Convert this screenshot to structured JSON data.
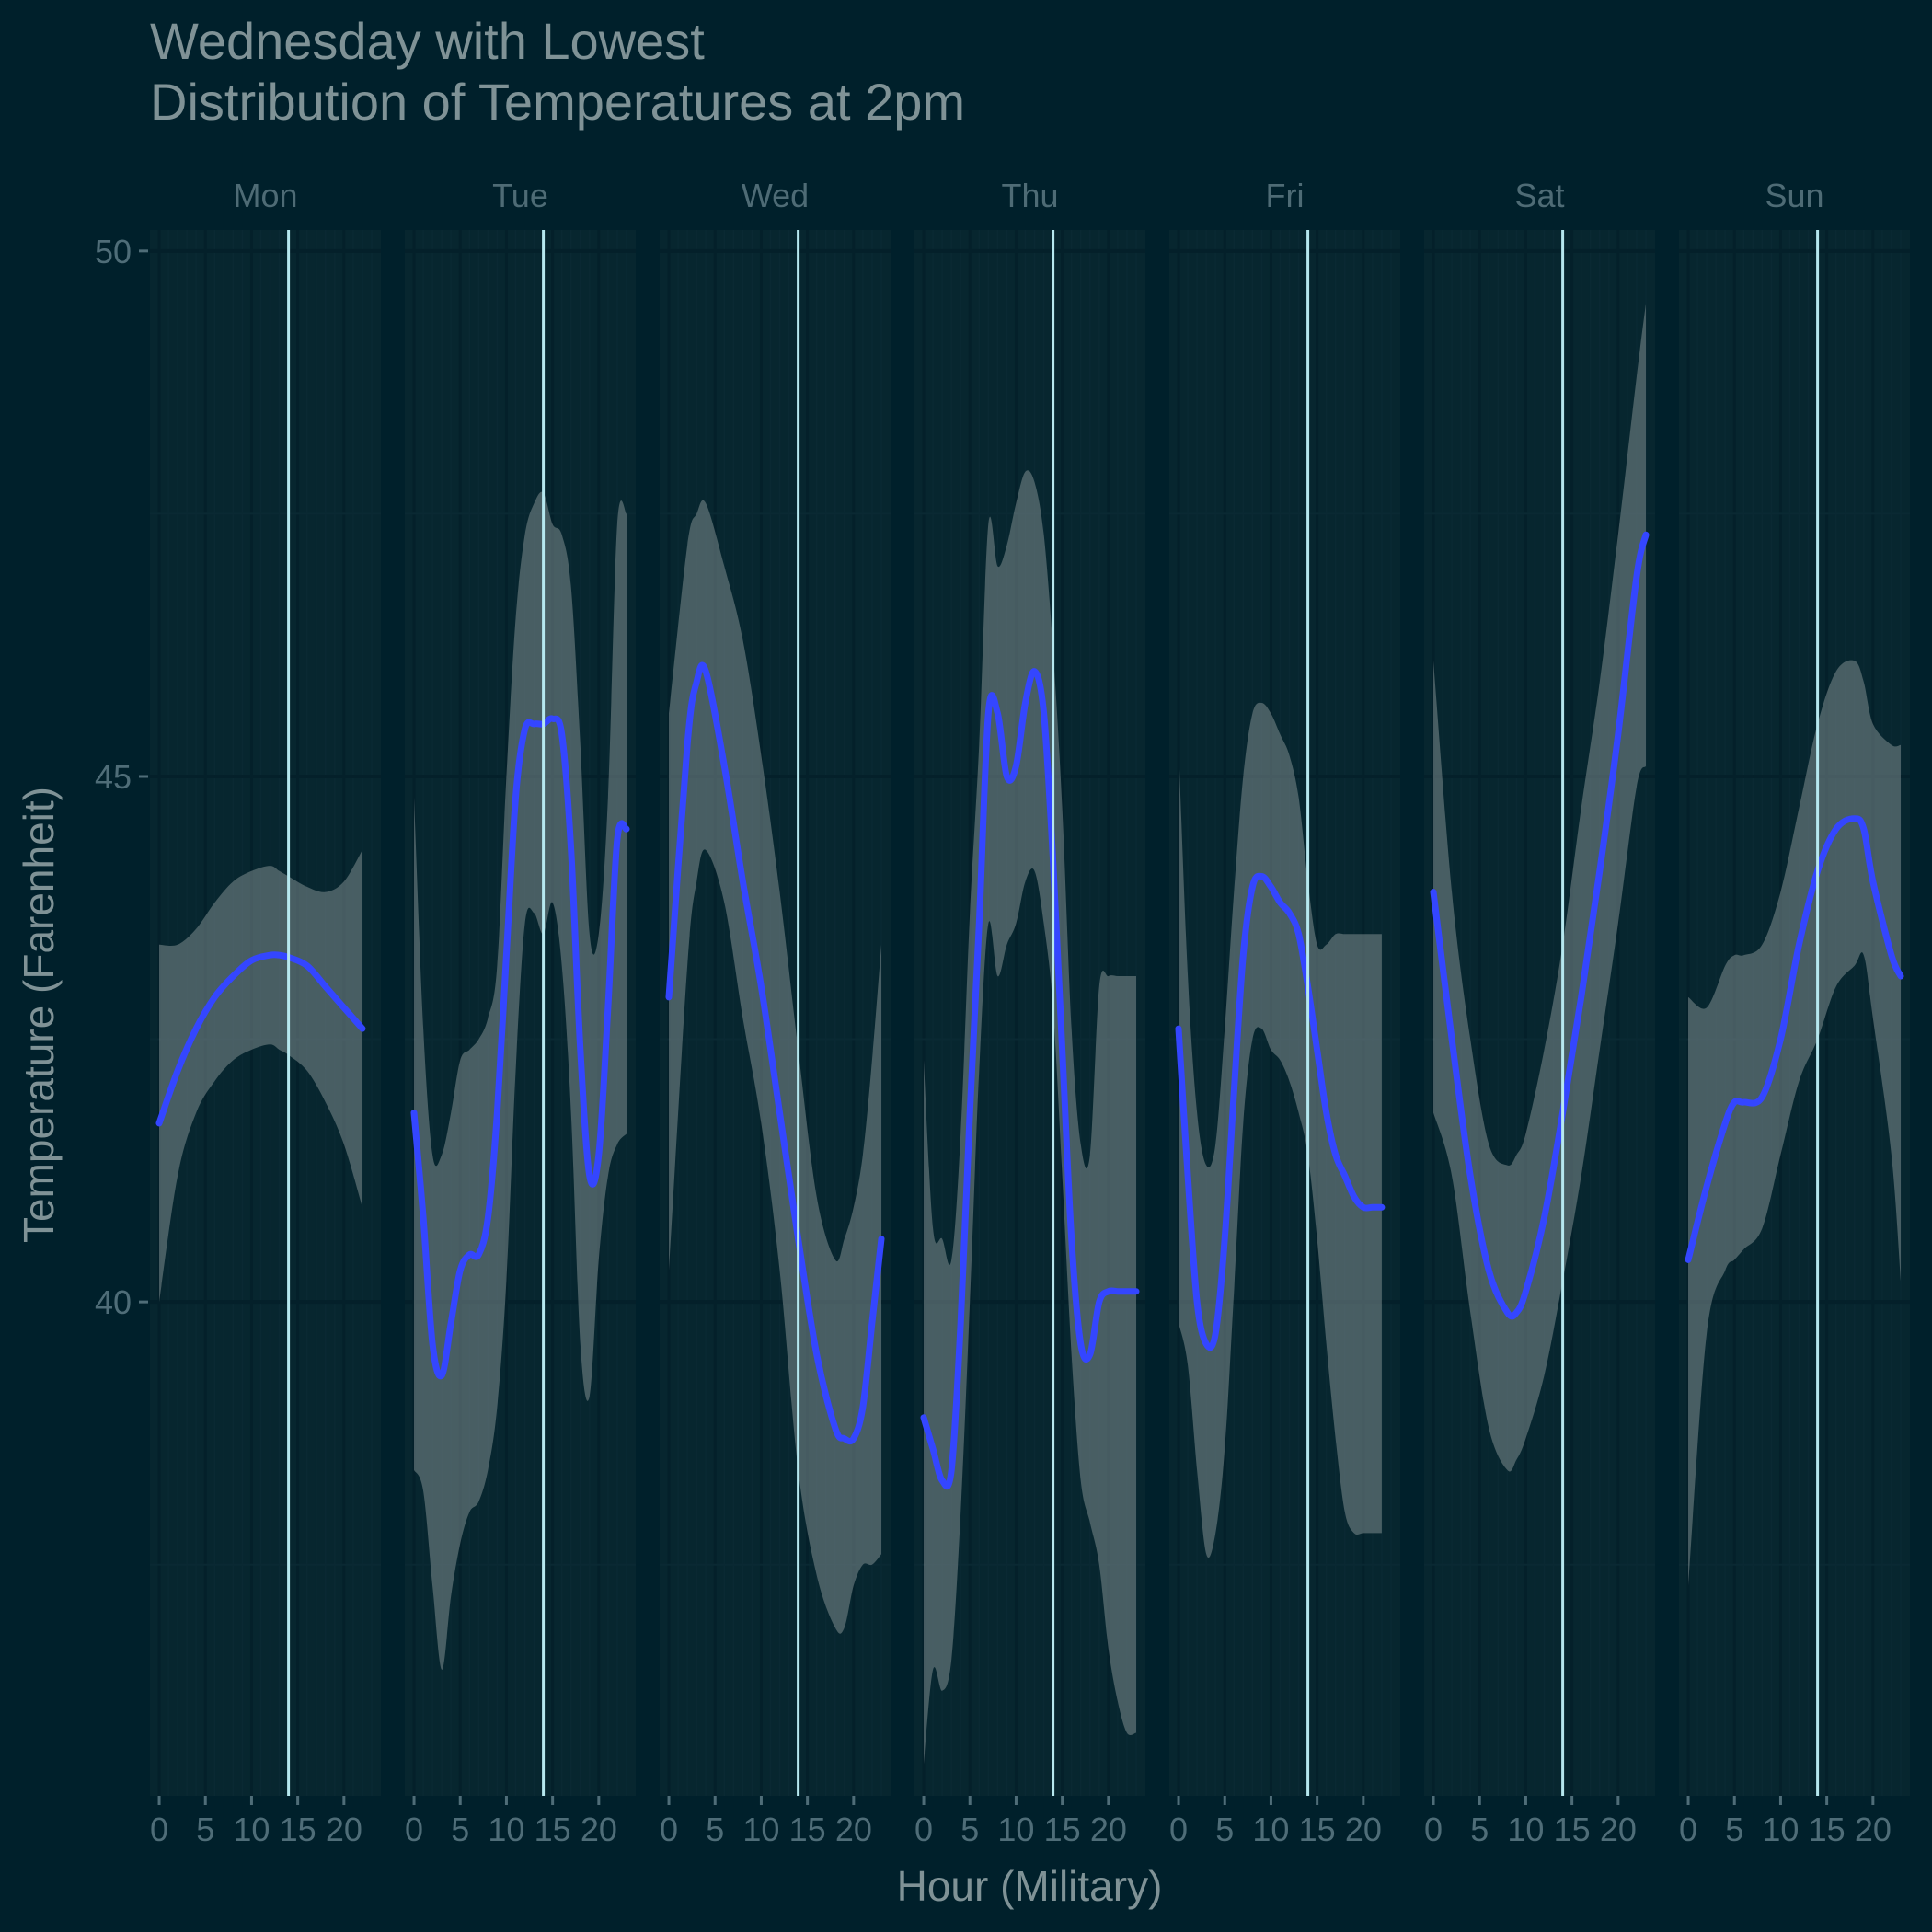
{
  "chart_data": {
    "type": "line",
    "title_line1": "Wednesday with Lowest",
    "title_line2": "Distribution of Temperatures at 2pm",
    "xlabel": "Hour (Military)",
    "ylabel": "Temperature (Farenheit)",
    "xlim": [
      -1,
      24
    ],
    "ylim": [
      35.3,
      50.2
    ],
    "x_ticks": [
      0,
      5,
      10,
      15,
      20
    ],
    "y_ticks": [
      40,
      45,
      50
    ],
    "reference_hour": 14,
    "grid": true,
    "colors": {
      "background": "#00202b",
      "panel": "#07262f",
      "strip_text": "#4e6b75",
      "text": "#7f9296",
      "tick_text": "#4f6d78",
      "line": "#3446ff",
      "ribbon": "#7d8c8e",
      "reference_line": "#b6e8ef",
      "grid_major": "#04202a",
      "grid_minor": "#0a2933"
    },
    "series": [
      {
        "name": "Mon",
        "x": [
          0,
          2,
          4,
          6,
          8,
          10,
          12,
          13,
          14,
          16,
          18,
          20,
          22
        ],
        "values": [
          41.7,
          42.2,
          42.6,
          42.9,
          43.1,
          43.25,
          43.3,
          43.3,
          43.28,
          43.2,
          43.0,
          42.8,
          42.6
        ],
        "lower": [
          40.0,
          41.2,
          41.8,
          42.1,
          42.3,
          42.4,
          42.45,
          42.4,
          42.35,
          42.2,
          41.9,
          41.5,
          40.9
        ],
        "upper": [
          43.4,
          43.4,
          43.55,
          43.8,
          44.0,
          44.1,
          44.15,
          44.1,
          44.05,
          43.95,
          43.9,
          44.0,
          44.3
        ]
      },
      {
        "name": "Tue",
        "x": [
          0,
          1,
          2,
          3,
          4,
          5,
          6,
          7,
          8,
          9,
          10,
          11,
          12,
          13,
          14,
          15,
          16,
          17,
          18,
          19,
          20,
          21,
          22,
          23
        ],
        "values": [
          41.8,
          40.8,
          39.6,
          39.3,
          39.8,
          40.3,
          40.45,
          40.45,
          40.8,
          41.8,
          43.3,
          44.8,
          45.45,
          45.5,
          45.5,
          45.55,
          45.4,
          44.3,
          42.4,
          41.2,
          41.4,
          42.8,
          44.4,
          44.5
        ],
        "lower": [
          38.4,
          38.2,
          37.3,
          36.5,
          37.2,
          37.7,
          38.0,
          38.1,
          38.4,
          39.0,
          40.2,
          42.2,
          43.6,
          43.7,
          43.5,
          43.8,
          43.2,
          41.8,
          39.6,
          39.1,
          40.4,
          41.2,
          41.5,
          41.6
        ],
        "upper": [
          44.8,
          42.6,
          41.4,
          41.4,
          41.8,
          42.3,
          42.4,
          42.5,
          42.7,
          43.2,
          45.0,
          46.5,
          47.3,
          47.6,
          47.7,
          47.4,
          47.3,
          46.8,
          45.3,
          43.5,
          43.5,
          44.8,
          47.4,
          47.5
        ]
      },
      {
        "name": "Wed",
        "x": [
          0,
          2,
          3,
          4,
          6,
          8,
          10,
          12,
          14,
          16,
          18,
          19,
          20,
          21,
          22,
          23
        ],
        "values": [
          42.9,
          45.3,
          45.9,
          46.0,
          45.1,
          44.0,
          43.0,
          41.8,
          40.6,
          39.5,
          38.8,
          38.7,
          38.7,
          39.0,
          39.8,
          40.6
        ],
        "lower": [
          40.3,
          43.2,
          44.0,
          44.3,
          43.8,
          42.7,
          41.7,
          40.3,
          38.4,
          37.4,
          36.9,
          36.9,
          37.3,
          37.5,
          37.5,
          37.6
        ],
        "upper": [
          45.6,
          47.2,
          47.5,
          47.6,
          47.0,
          46.3,
          45.2,
          43.9,
          42.4,
          41.0,
          40.4,
          40.6,
          40.9,
          41.4,
          42.3,
          43.4
        ],
        "highlight": true
      },
      {
        "name": "Thu",
        "x": [
          0,
          1,
          2,
          3,
          4,
          5,
          6,
          7,
          8,
          9,
          10,
          11,
          12,
          13,
          14,
          15,
          16,
          17,
          18,
          19,
          20,
          21,
          22,
          23
        ],
        "values": [
          38.9,
          38.6,
          38.3,
          38.4,
          39.8,
          41.8,
          43.6,
          45.6,
          45.6,
          45.0,
          45.1,
          45.7,
          46.0,
          45.6,
          44.2,
          42.4,
          40.6,
          39.6,
          39.5,
          40.0,
          40.1,
          40.1,
          40.1,
          40.1
        ],
        "lower": [
          35.6,
          36.5,
          36.3,
          36.6,
          38.0,
          40.0,
          42.2,
          43.6,
          43.1,
          43.4,
          43.6,
          44.0,
          44.1,
          43.6,
          42.8,
          41.2,
          39.5,
          38.3,
          37.9,
          37.5,
          36.7,
          36.2,
          35.9,
          35.9
        ],
        "upper": [
          42.3,
          40.7,
          40.6,
          40.4,
          41.6,
          43.7,
          45.3,
          47.4,
          47.0,
          47.2,
          47.6,
          47.9,
          47.8,
          47.3,
          46.2,
          44.7,
          42.6,
          41.5,
          41.4,
          43.0,
          43.1,
          43.1,
          43.1,
          43.1
        ]
      },
      {
        "name": "Fri",
        "x": [
          0,
          1,
          2,
          3,
          4,
          5,
          6,
          7,
          8,
          9,
          10,
          11,
          12,
          13,
          14,
          15,
          16,
          17,
          18,
          19,
          20,
          21,
          22
        ],
        "values": [
          42.6,
          41.2,
          40.0,
          39.6,
          39.7,
          40.6,
          42.0,
          43.3,
          43.95,
          44.05,
          43.95,
          43.8,
          43.7,
          43.5,
          43.0,
          42.4,
          41.8,
          41.4,
          41.2,
          41.0,
          40.9,
          40.9,
          40.9
        ],
        "lower": [
          39.8,
          39.4,
          38.4,
          37.6,
          37.8,
          38.6,
          40.1,
          41.7,
          42.5,
          42.6,
          42.4,
          42.3,
          42.1,
          41.8,
          41.4,
          40.6,
          39.6,
          38.7,
          38.0,
          37.8,
          37.8,
          37.8,
          37.8
        ],
        "upper": [
          45.3,
          43.1,
          41.8,
          41.3,
          41.5,
          42.6,
          43.9,
          45.0,
          45.6,
          45.7,
          45.6,
          45.4,
          45.2,
          44.8,
          44.0,
          43.4,
          43.4,
          43.5,
          43.5,
          43.5,
          43.5,
          43.5,
          43.5
        ]
      },
      {
        "name": "Sat",
        "x": [
          0,
          2,
          4,
          6,
          8,
          9,
          10,
          12,
          14,
          16,
          18,
          20,
          22,
          23
        ],
        "values": [
          43.9,
          42.5,
          41.2,
          40.3,
          39.9,
          39.9,
          40.1,
          40.8,
          41.8,
          42.9,
          44.1,
          45.4,
          46.9,
          47.3
        ],
        "lower": [
          41.8,
          41.2,
          39.9,
          38.8,
          38.4,
          38.5,
          38.7,
          39.3,
          40.2,
          41.2,
          42.4,
          43.6,
          44.9,
          45.1
        ],
        "upper": [
          46.1,
          43.9,
          42.5,
          41.5,
          41.3,
          41.4,
          41.6,
          42.4,
          43.4,
          44.7,
          45.9,
          47.3,
          48.8,
          49.5
        ]
      },
      {
        "name": "Sun",
        "x": [
          0,
          2,
          4,
          5,
          6,
          8,
          10,
          12,
          14,
          16,
          18,
          19,
          20,
          22,
          23
        ],
        "values": [
          40.4,
          41.1,
          41.7,
          41.9,
          41.9,
          41.95,
          42.5,
          43.4,
          44.1,
          44.5,
          44.6,
          44.5,
          44.0,
          43.3,
          43.1
        ],
        "lower": [
          37.3,
          39.7,
          40.3,
          40.4,
          40.5,
          40.7,
          41.4,
          42.1,
          42.5,
          43.0,
          43.2,
          43.3,
          42.7,
          41.4,
          40.2
        ],
        "upper": [
          42.9,
          42.8,
          43.2,
          43.3,
          43.3,
          43.4,
          43.9,
          44.7,
          45.5,
          46.0,
          46.1,
          45.9,
          45.5,
          45.3,
          45.3
        ]
      }
    ]
  }
}
